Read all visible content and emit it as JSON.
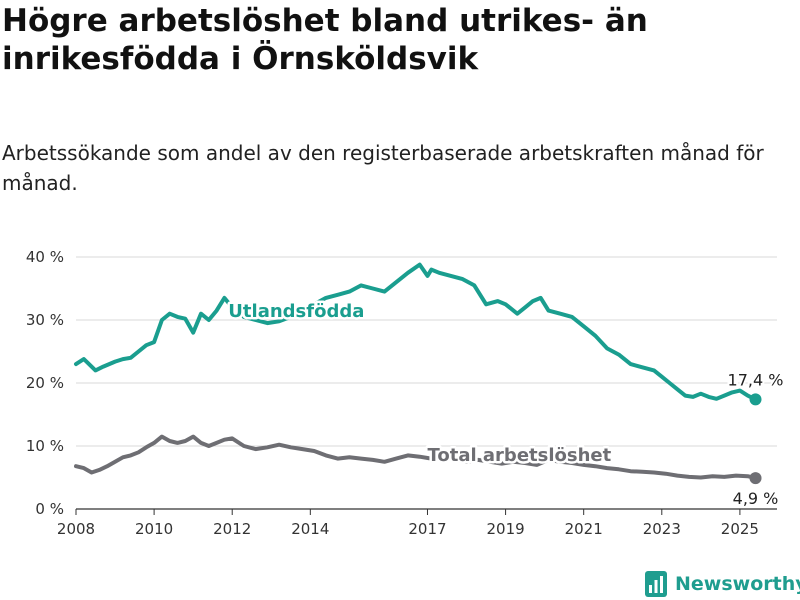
{
  "title": "Högre arbetslöshet bland utrikes- än inrikesfödda i Örnsköldsvik",
  "subtitle": "Arbetssökande som andel av den registerbaserade arbetskraften månad för månad.",
  "brand": {
    "name": "Newsworthy",
    "icon": "newsworthy-logo-icon",
    "color": "#1f9d8f"
  },
  "chart_data": {
    "type": "line",
    "ylim": [
      0,
      40
    ],
    "yticks": [
      0,
      10,
      20,
      30,
      40
    ],
    "ytick_labels": [
      "0 %",
      "10 %",
      "20 %",
      "30 %",
      "40 %"
    ],
    "xlim": [
      2008.0,
      2025.95
    ],
    "xticks": [
      2008,
      2010,
      2012,
      2014,
      2017,
      2019,
      2021,
      2023,
      2025
    ],
    "xtick_labels": [
      "2008",
      "2010",
      "2012",
      "2014",
      "2017",
      "2019",
      "2021",
      "2023",
      "2025"
    ],
    "grid": true,
    "legend": "inline",
    "series": [
      {
        "name": "Utlandsfödda",
        "color": "#1a9e8f",
        "end_label": "17,4 %",
        "x": [
          2008.0,
          2008.2,
          2008.3,
          2008.5,
          2008.7,
          2009.0,
          2009.2,
          2009.4,
          2009.6,
          2009.8,
          2010.0,
          2010.2,
          2010.4,
          2010.6,
          2010.8,
          2011.0,
          2011.2,
          2011.4,
          2011.6,
          2011.8,
          2012.0,
          2012.3,
          2012.6,
          2012.9,
          2013.2,
          2013.5,
          2013.8,
          2014.1,
          2014.4,
          2014.7,
          2015.0,
          2015.3,
          2015.6,
          2015.9,
          2016.2,
          2016.5,
          2016.8,
          2017.0,
          2017.1,
          2017.3,
          2017.6,
          2017.9,
          2018.2,
          2018.5,
          2018.8,
          2019.0,
          2019.3,
          2019.5,
          2019.7,
          2019.9,
          2020.1,
          2020.4,
          2020.7,
          2021.0,
          2021.3,
          2021.6,
          2021.9,
          2022.2,
          2022.5,
          2022.8,
          2023.0,
          2023.2,
          2023.4,
          2023.6,
          2023.8,
          2024.0,
          2024.2,
          2024.4,
          2024.6,
          2024.8,
          2025.0,
          2025.2,
          2025.4
        ],
        "values": [
          23.0,
          23.8,
          23.2,
          22.0,
          22.6,
          23.4,
          23.8,
          24.0,
          25.0,
          26.0,
          26.5,
          30.0,
          31.0,
          30.5,
          30.2,
          28.0,
          31.0,
          30.0,
          31.5,
          33.5,
          32.0,
          30.5,
          30.0,
          29.5,
          29.8,
          30.5,
          31.5,
          32.5,
          33.5,
          34.0,
          34.5,
          35.5,
          35.0,
          34.5,
          36.0,
          37.5,
          38.8,
          37.0,
          38.0,
          37.5,
          37.0,
          36.5,
          35.5,
          32.5,
          33.0,
          32.5,
          31.0,
          32.0,
          33.0,
          33.5,
          31.5,
          31.0,
          30.5,
          29.0,
          27.5,
          25.5,
          24.5,
          23.0,
          22.5,
          22.0,
          21.0,
          20.0,
          19.0,
          18.0,
          17.8,
          18.3,
          17.8,
          17.5,
          18.0,
          18.5,
          18.8,
          18.0,
          17.4
        ]
      },
      {
        "name": "Total arbetslöshet",
        "color": "#6e6e73",
        "end_label": "4,9 %",
        "x": [
          2008.0,
          2008.2,
          2008.4,
          2008.6,
          2008.8,
          2009.0,
          2009.2,
          2009.4,
          2009.6,
          2009.8,
          2010.0,
          2010.2,
          2010.4,
          2010.6,
          2010.8,
          2011.0,
          2011.2,
          2011.4,
          2011.6,
          2011.8,
          2012.0,
          2012.3,
          2012.6,
          2012.9,
          2013.2,
          2013.5,
          2013.8,
          2014.1,
          2014.4,
          2014.7,
          2015.0,
          2015.3,
          2015.6,
          2015.9,
          2016.2,
          2016.5,
          2016.8,
          2017.1,
          2017.4,
          2017.7,
          2018.0,
          2018.3,
          2018.6,
          2018.9,
          2019.2,
          2019.5,
          2019.8,
          2020.1,
          2020.4,
          2020.7,
          2021.0,
          2021.3,
          2021.6,
          2021.9,
          2022.2,
          2022.5,
          2022.8,
          2023.1,
          2023.4,
          2023.7,
          2024.0,
          2024.3,
          2024.6,
          2024.9,
          2025.2,
          2025.4
        ],
        "values": [
          6.8,
          6.5,
          5.8,
          6.2,
          6.8,
          7.5,
          8.2,
          8.5,
          9.0,
          9.8,
          10.5,
          11.5,
          10.8,
          10.5,
          10.8,
          11.5,
          10.5,
          10.0,
          10.5,
          11.0,
          11.2,
          10.0,
          9.5,
          9.8,
          10.2,
          9.8,
          9.5,
          9.2,
          8.5,
          8.0,
          8.2,
          8.0,
          7.8,
          7.5,
          8.0,
          8.5,
          8.3,
          8.0,
          8.2,
          7.8,
          7.5,
          7.8,
          7.5,
          7.2,
          7.5,
          7.3,
          7.0,
          7.8,
          7.5,
          7.3,
          7.0,
          6.8,
          6.5,
          6.3,
          6.0,
          5.9,
          5.8,
          5.6,
          5.3,
          5.1,
          5.0,
          5.2,
          5.1,
          5.3,
          5.2,
          4.9
        ]
      }
    ]
  }
}
